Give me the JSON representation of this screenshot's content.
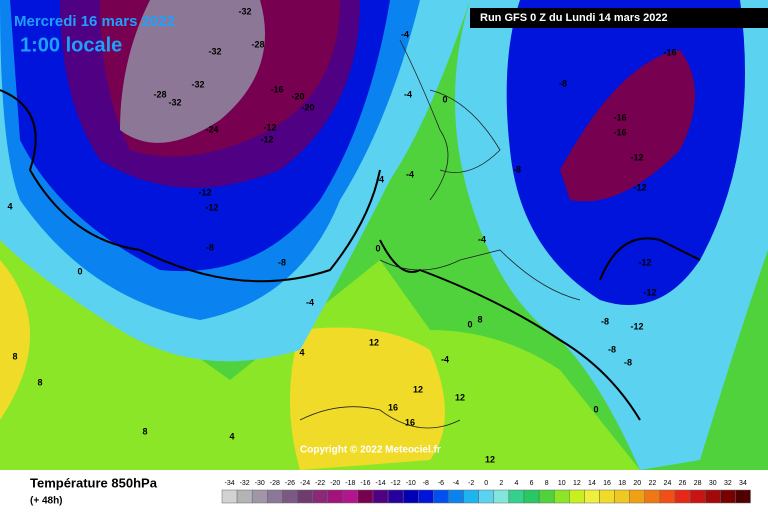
{
  "header": {
    "valid_date": "Mercredi 16 mars 2022",
    "local_time": "1:00 locale",
    "run": "Run GFS 0 Z du Lundi 14 mars 2022"
  },
  "footer": {
    "parameter": "Température 850hPa",
    "lead": "(+ 48h)",
    "copyright": "Copyright © 2022 Meteociel.fr"
  },
  "legend": {
    "values": [
      -34,
      -32,
      -30,
      -28,
      -26,
      -24,
      -22,
      -20,
      -18,
      -16,
      -14,
      -12,
      -10,
      -8,
      -6,
      -4,
      -2,
      0,
      2,
      4,
      6,
      8,
      10,
      12,
      14,
      16,
      18,
      20,
      22,
      24,
      26,
      28,
      30,
      32,
      34
    ],
    "colors": [
      "#d2d2d2",
      "#b4b4b4",
      "#a096a8",
      "#8c7896",
      "#7a5a84",
      "#6e3c6e",
      "#8c2878",
      "#a0147c",
      "#b4148c",
      "#780050",
      "#500082",
      "#2800a0",
      "#0000b4",
      "#0014dc",
      "#0050f0",
      "#0a82f0",
      "#1eb4f0",
      "#5ad2f0",
      "#82e6dc",
      "#32d28c",
      "#28c864",
      "#50d23c",
      "#8ce628",
      "#c8f01e",
      "#f0f03c",
      "#f0dc28",
      "#f0c81e",
      "#f0a014",
      "#f07814",
      "#f05014",
      "#e62814",
      "#c81414",
      "#a00a0a",
      "#780000",
      "#500000"
    ]
  },
  "map_labels": [
    -32,
    -28,
    -32,
    -32,
    -28,
    -32,
    -24,
    -12,
    -16,
    -20,
    -20,
    -12,
    -12,
    -8,
    -8,
    -12,
    -12,
    -8,
    -8,
    -4,
    -4,
    -4,
    -4,
    0,
    -8,
    -16,
    -16,
    -16,
    -12,
    -12,
    -12,
    -12,
    -8,
    -8,
    -4,
    0,
    0,
    -4,
    0,
    4,
    8,
    12,
    12,
    16,
    16,
    12,
    12,
    8,
    8,
    8,
    4,
    4,
    0,
    -4
  ]
}
